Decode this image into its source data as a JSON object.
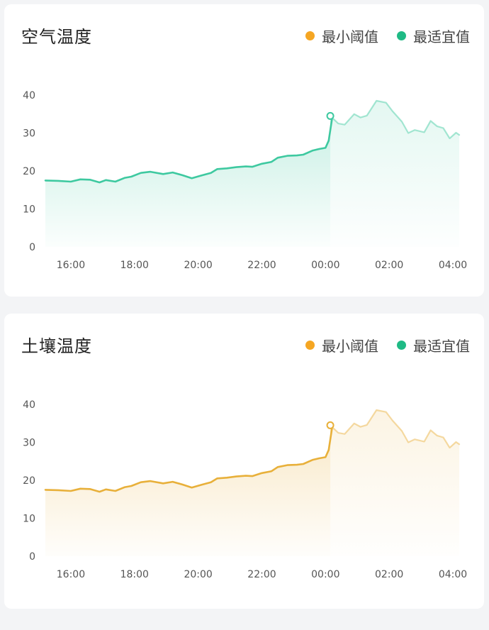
{
  "colors": {
    "background": "#f3f4f6",
    "min_threshold": "#f5a623",
    "optimal": "#1fba85",
    "air_line": "#3ec9a0",
    "soil_line": "#e8b03a"
  },
  "legend": {
    "min_threshold": "最小阈值",
    "optimal": "最适宜值"
  },
  "air_card": {
    "title": "空气温度"
  },
  "soil_card": {
    "title": "土壤温度"
  },
  "chart_data": [
    {
      "type": "area",
      "title": "空气温度",
      "xlabel": "",
      "ylabel": "",
      "x_ticks": [
        "16:00",
        "18:00",
        "20:00",
        "22:00",
        "00:00",
        "02:00",
        "04:00"
      ],
      "y_ticks": [
        0,
        10,
        20,
        30,
        40
      ],
      "ylim": [
        0,
        40
      ],
      "x_range_hours": [
        15.2,
        28.2
      ],
      "marker_index": 34,
      "grid": false,
      "legend_placement": "top-right",
      "series": [
        {
          "x": [
            15.2,
            15.6,
            16.0,
            16.3,
            16.6,
            16.9,
            17.1,
            17.4,
            17.7,
            17.9,
            18.2,
            18.5,
            18.9,
            19.2,
            19.5,
            19.8,
            20.1,
            20.4,
            20.6,
            20.9,
            21.2,
            21.5,
            21.7,
            22.0,
            22.3,
            22.5,
            22.8,
            23.1,
            23.3,
            23.6,
            23.8,
            24.0,
            24.1,
            24.2,
            24.15,
            24.4,
            24.6,
            24.9,
            25.1,
            25.3,
            25.6,
            25.9,
            26.1,
            26.4,
            26.6,
            26.8,
            27.1,
            27.3,
            27.5,
            27.7,
            27.9,
            28.1,
            28.2
          ],
          "y": [
            17.5,
            17.4,
            17.2,
            17.8,
            17.7,
            17.0,
            17.6,
            17.2,
            18.2,
            18.5,
            19.5,
            19.8,
            19.2,
            19.6,
            18.9,
            18.1,
            18.8,
            19.5,
            20.5,
            20.7,
            21.0,
            21.2,
            21.1,
            21.9,
            22.4,
            23.5,
            24.0,
            24.1,
            24.3,
            25.4,
            25.8,
            26.1,
            28.0,
            33.5,
            34.5,
            32.5,
            32.2,
            35.0,
            34.1,
            34.6,
            38.5,
            38.0,
            35.8,
            33.0,
            30.0,
            30.8,
            30.2,
            33.2,
            31.8,
            31.3,
            28.6,
            30.1,
            29.5
          ]
        }
      ]
    },
    {
      "type": "area",
      "title": "土壤温度",
      "xlabel": "",
      "ylabel": "",
      "x_ticks": [
        "16:00",
        "18:00",
        "20:00",
        "22:00",
        "00:00",
        "02:00",
        "04:00"
      ],
      "y_ticks": [
        0,
        10,
        20,
        30,
        40
      ],
      "ylim": [
        0,
        40
      ],
      "x_range_hours": [
        15.2,
        28.2
      ],
      "marker_index": 34,
      "grid": false,
      "legend_placement": "top-right",
      "series": [
        {
          "x": [
            15.2,
            15.6,
            16.0,
            16.3,
            16.6,
            16.9,
            17.1,
            17.4,
            17.7,
            17.9,
            18.2,
            18.5,
            18.9,
            19.2,
            19.5,
            19.8,
            20.1,
            20.4,
            20.6,
            20.9,
            21.2,
            21.5,
            21.7,
            22.0,
            22.3,
            22.5,
            22.8,
            23.1,
            23.3,
            23.6,
            23.8,
            24.0,
            24.1,
            24.2,
            24.15,
            24.4,
            24.6,
            24.9,
            25.1,
            25.3,
            25.6,
            25.9,
            26.1,
            26.4,
            26.6,
            26.8,
            27.1,
            27.3,
            27.5,
            27.7,
            27.9,
            28.1,
            28.2
          ],
          "y": [
            17.5,
            17.4,
            17.2,
            17.8,
            17.7,
            17.0,
            17.6,
            17.2,
            18.2,
            18.5,
            19.5,
            19.8,
            19.2,
            19.6,
            18.9,
            18.1,
            18.8,
            19.5,
            20.5,
            20.7,
            21.0,
            21.2,
            21.1,
            21.9,
            22.4,
            23.5,
            24.0,
            24.1,
            24.3,
            25.4,
            25.8,
            26.1,
            28.0,
            33.5,
            34.5,
            32.5,
            32.2,
            35.0,
            34.1,
            34.6,
            38.5,
            38.0,
            35.8,
            33.0,
            30.0,
            30.8,
            30.2,
            33.2,
            31.8,
            31.3,
            28.6,
            30.1,
            29.5
          ]
        }
      ]
    }
  ]
}
